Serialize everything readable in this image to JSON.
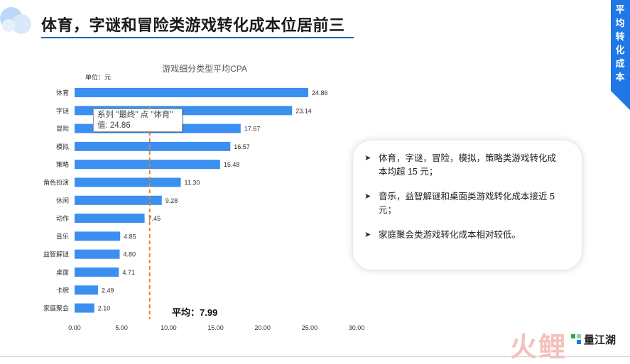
{
  "slide": {
    "title": "体育，字谜和冒险类游戏转化成本位居前三",
    "corner_label": "平均转化成本",
    "accent_color": "#1f78e6",
    "bar_color": "#3b8ff0",
    "avg_line_color": "#f07f1e"
  },
  "chart_data": {
    "type": "bar",
    "orientation": "horizontal",
    "title": "游戏细分类型平均CPA",
    "unit_label": "单位：元",
    "categories": [
      "体育",
      "字谜",
      "冒险",
      "模拟",
      "策略",
      "角色扮演",
      "休闲",
      "动作",
      "音乐",
      "益智解谜",
      "桌面",
      "卡牌",
      "家庭聚会"
    ],
    "values": [
      24.86,
      23.14,
      17.67,
      16.57,
      15.48,
      11.3,
      9.28,
      7.45,
      4.85,
      4.8,
      4.71,
      2.49,
      2.1
    ],
    "value_labels": [
      "24.86",
      "23.14",
      "17.67",
      "16.57",
      "15.48",
      "11.30",
      "9.28",
      "7.45",
      "4.85",
      "4.80",
      "4.71",
      "2.49",
      "2.10"
    ],
    "xlim": [
      0,
      30
    ],
    "xticks": [
      0,
      5,
      10,
      15,
      20,
      25,
      30
    ],
    "xtick_labels": [
      "0.00",
      "5.00",
      "10.00",
      "15.00",
      "20.00",
      "25.00",
      "30.00"
    ],
    "average": 7.99,
    "average_label": "平均：7.99",
    "grid": false
  },
  "tooltip": {
    "line1": "系列 \"最终\" 点 \"体育\"",
    "line2": "值: 24.86"
  },
  "insights": [
    "体育，字谜，冒险，模拟，策略类游戏转化成本均超 15 元；",
    "音乐，益智解谜和桌面类游戏转化成本接近 5 元；",
    "家庭聚会类游戏转化成本相对较低。"
  ],
  "watermark": {
    "big": "火鲤",
    "badge": "量江湖"
  }
}
